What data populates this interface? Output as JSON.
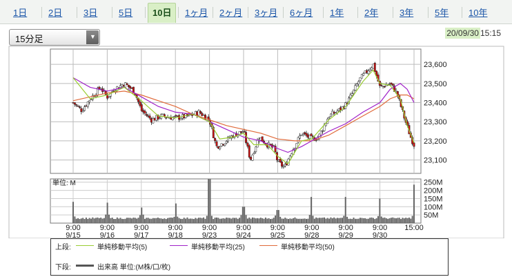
{
  "tabs": [
    {
      "label": "1日",
      "active": false
    },
    {
      "label": "2日",
      "active": false
    },
    {
      "label": "3日",
      "active": false
    },
    {
      "label": "5日",
      "active": false
    },
    {
      "label": "10日",
      "active": true
    },
    {
      "label": "1ヶ月",
      "active": false
    },
    {
      "label": "2ヶ月",
      "active": false
    },
    {
      "label": "3ヶ月",
      "active": false
    },
    {
      "label": "6ヶ月",
      "active": false
    },
    {
      "label": "1年",
      "active": false
    },
    {
      "label": "2年",
      "active": false
    },
    {
      "label": "3年",
      "active": false
    },
    {
      "label": "5年",
      "active": false
    },
    {
      "label": "10年",
      "active": false
    }
  ],
  "interval_select": {
    "value": "15分足"
  },
  "timestamp": {
    "date": "20/09/30",
    "time": "15:15"
  },
  "legend": {
    "upper_label": "上段:",
    "lower_label": "下段:",
    "ma5": "単純移動平均(5)",
    "ma25": "単純移動平均(25)",
    "ma50": "単純移動平均(50)",
    "volume": "出来高 単位:(M株/口/枚)"
  },
  "colors": {
    "ma5": "#9acd32",
    "ma25": "#a020c8",
    "ma50": "#e06a3a",
    "up": "#ffffff",
    "down": "#cc1111",
    "volume": "#666666",
    "active_tab": "#d9efc6"
  },
  "chart_data": [
    {
      "type": "candlestick",
      "x_ticks": [
        {
          "time": "9:00",
          "date": "9/15"
        },
        {
          "time": "9:00",
          "date": "9/16"
        },
        {
          "time": "9:00",
          "date": "9/17"
        },
        {
          "time": "9:00",
          "date": "9/18"
        },
        {
          "time": "9:00",
          "date": "9/23"
        },
        {
          "time": "9:00",
          "date": "9/24"
        },
        {
          "time": "9:00",
          "date": "9/25"
        },
        {
          "time": "9:00",
          "date": "9/28"
        },
        {
          "time": "9:00",
          "date": "9/29"
        },
        {
          "time": "9:00",
          "date": "9/30"
        },
        {
          "time": "15:00",
          "date": ""
        }
      ],
      "y_ticks": [
        "23,100",
        "23,200",
        "23,300",
        "23,400",
        "23,500",
        "23,600"
      ],
      "ylim": [
        23030,
        23680
      ],
      "close_path": [
        [
          0,
          23400
        ],
        [
          0.25,
          23360
        ],
        [
          0.5,
          23420
        ],
        [
          0.8,
          23480
        ],
        [
          1,
          23430
        ],
        [
          1.2,
          23470
        ],
        [
          1.5,
          23500
        ],
        [
          1.8,
          23460
        ],
        [
          2,
          23360
        ],
        [
          2.3,
          23310
        ],
        [
          2.6,
          23330
        ],
        [
          3,
          23320
        ],
        [
          3.4,
          23330
        ],
        [
          3.7,
          23350
        ],
        [
          4,
          23310
        ],
        [
          4.2,
          23170
        ],
        [
          4.4,
          23190
        ],
        [
          4.7,
          23230
        ],
        [
          5,
          23250
        ],
        [
          5.2,
          23100
        ],
        [
          5.45,
          23220
        ],
        [
          5.7,
          23180
        ],
        [
          5.9,
          23160
        ],
        [
          6,
          23090
        ],
        [
          6.2,
          23060
        ],
        [
          6.4,
          23140
        ],
        [
          6.7,
          23240
        ],
        [
          7,
          23210
        ],
        [
          7.2,
          23220
        ],
        [
          7.5,
          23330
        ],
        [
          7.8,
          23360
        ],
        [
          8,
          23390
        ],
        [
          8.2,
          23450
        ],
        [
          8.4,
          23520
        ],
        [
          8.6,
          23560
        ],
        [
          8.8,
          23600
        ],
        [
          9,
          23480
        ],
        [
          9.3,
          23500
        ],
        [
          9.5,
          23450
        ],
        [
          9.7,
          23330
        ],
        [
          9.9,
          23220
        ],
        [
          10,
          23180
        ]
      ],
      "ma5_path": [
        [
          0,
          23530
        ],
        [
          0.5,
          23420
        ],
        [
          1,
          23440
        ],
        [
          1.5,
          23480
        ],
        [
          2,
          23410
        ],
        [
          2.5,
          23330
        ],
        [
          3,
          23320
        ],
        [
          3.5,
          23340
        ],
        [
          4,
          23300
        ],
        [
          4.3,
          23210
        ],
        [
          4.7,
          23220
        ],
        [
          5,
          23240
        ],
        [
          5.3,
          23180
        ],
        [
          5.7,
          23180
        ],
        [
          6,
          23120
        ],
        [
          6.3,
          23080
        ],
        [
          6.7,
          23200
        ],
        [
          7,
          23210
        ],
        [
          7.5,
          23310
        ],
        [
          8,
          23380
        ],
        [
          8.5,
          23510
        ],
        [
          8.8,
          23570
        ],
        [
          9,
          23500
        ],
        [
          9.3,
          23490
        ],
        [
          9.6,
          23420
        ],
        [
          9.8,
          23280
        ],
        [
          10,
          23190
        ]
      ],
      "ma25_path": [
        [
          0,
          23530
        ],
        [
          0.5,
          23480
        ],
        [
          1,
          23460
        ],
        [
          1.5,
          23480
        ],
        [
          2,
          23430
        ],
        [
          2.5,
          23380
        ],
        [
          3,
          23350
        ],
        [
          3.5,
          23340
        ],
        [
          4,
          23300
        ],
        [
          4.5,
          23260
        ],
        [
          5,
          23220
        ],
        [
          5.5,
          23200
        ],
        [
          6,
          23160
        ],
        [
          6.3,
          23140
        ],
        [
          6.7,
          23170
        ],
        [
          7,
          23200
        ],
        [
          7.5,
          23250
        ],
        [
          8,
          23290
        ],
        [
          8.5,
          23350
        ],
        [
          9,
          23400
        ],
        [
          9.3,
          23470
        ],
        [
          9.6,
          23500
        ],
        [
          9.8,
          23470
        ],
        [
          10,
          23400
        ]
      ],
      "ma50_path": [
        [
          0,
          23410
        ],
        [
          0.5,
          23430
        ],
        [
          1,
          23450
        ],
        [
          1.5,
          23460
        ],
        [
          2,
          23440
        ],
        [
          2.5,
          23410
        ],
        [
          3,
          23380
        ],
        [
          3.5,
          23340
        ],
        [
          4,
          23310
        ],
        [
          4.5,
          23280
        ],
        [
          5,
          23260
        ],
        [
          5.5,
          23240
        ],
        [
          6,
          23210
        ],
        [
          6.5,
          23200
        ],
        [
          7,
          23200
        ],
        [
          7.5,
          23230
        ],
        [
          8,
          23280
        ],
        [
          8.5,
          23330
        ],
        [
          9,
          23380
        ],
        [
          9.3,
          23420
        ],
        [
          9.6,
          23440
        ],
        [
          9.8,
          23440
        ],
        [
          10,
          23420
        ]
      ],
      "volume": {
        "unit_label": "単位: M",
        "y_ticks": [
          "50M",
          "100M",
          "150M",
          "200M",
          "250M"
        ],
        "ylim": [
          0,
          270
        ],
        "session_open_spikes": [
          130,
          125,
          95,
          120,
          270,
          100,
          80,
          160,
          160,
          150,
          235
        ],
        "base_level": [
          25,
          35
        ]
      }
    }
  ]
}
